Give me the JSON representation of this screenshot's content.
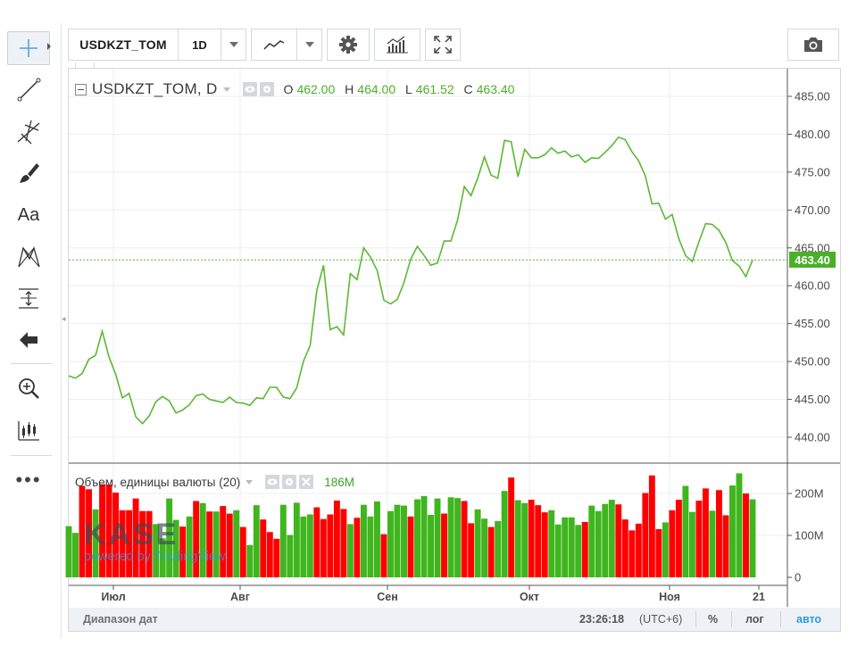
{
  "toolbar": {
    "symbol": "USDKZT_TOM",
    "interval": "1D"
  },
  "legend": {
    "symbol_interval": "USDKZT_TOM, D",
    "o_label": "O",
    "o_value": "462.00",
    "h_label": "H",
    "h_value": "464.00",
    "l_label": "L",
    "l_value": "461.52",
    "c_label": "C",
    "c_value": "463.40"
  },
  "volume_legend": {
    "title": "Объем, единицы валюты (20)",
    "value": "186M"
  },
  "watermark": {
    "logo": "KASE",
    "tagline": "powered by TradingView"
  },
  "price_axis": {
    "ticks": [
      "485.00",
      "480.00",
      "475.00",
      "470.00",
      "465.00",
      "460.00",
      "455.00",
      "450.00",
      "445.00",
      "440.00"
    ],
    "last_price": "463.40"
  },
  "volume_axis": {
    "ticks": [
      "200M",
      "100M",
      "0"
    ]
  },
  "time_axis": {
    "ticks": [
      "Июл",
      "Авг",
      "Сен",
      "Окт",
      "Ноя",
      "21"
    ]
  },
  "statusbar": {
    "date_range": "Диапазон дат",
    "time": "23:26:18",
    "timezone": "(UTC+6)",
    "percent": "%",
    "log": "лог",
    "auto": "авто"
  },
  "colors": {
    "line": "#5cb833",
    "up": "#3fb51e",
    "down": "#ff0000",
    "accent": "#2d9ce0"
  },
  "icons": {
    "tools": [
      "crosshair-icon",
      "trend-line-icon",
      "pitchfork-icon",
      "brush-icon",
      "text-icon",
      "pattern-icon",
      "measure-icon",
      "arrow-left-icon",
      "zoom-icon",
      "ruler-chart-icon",
      "more-icon"
    ],
    "top": [
      "line-style-icon",
      "gear-icon",
      "indicators-icon",
      "fullscreen-icon",
      "camera-icon"
    ]
  },
  "chart_data": {
    "type": "line",
    "title": "USDKZT_TOM, D",
    "xlabel": "",
    "ylabel": "",
    "ylim": [
      437,
      488
    ],
    "x_ticks": [
      "Июл",
      "Авг",
      "Сен",
      "Окт",
      "Ноя",
      "21"
    ],
    "series": [
      {
        "name": "USDKZT_TOM",
        "values": [
          448.1,
          447.8,
          448.4,
          450.3,
          450.8,
          454.0,
          450.6,
          448.3,
          445.2,
          445.8,
          442.7,
          441.8,
          442.8,
          444.7,
          445.4,
          444.8,
          443.2,
          443.6,
          444.3,
          445.5,
          445.7,
          445.0,
          444.8,
          444.6,
          445.3,
          444.6,
          444.5,
          444.2,
          445.2,
          445.1,
          446.6,
          446.6,
          445.3,
          445.1,
          446.5,
          450.0,
          452.1,
          459.4,
          462.7,
          454.2,
          454.6,
          453.5,
          461.6,
          460.8,
          465.0,
          463.8,
          462.0,
          458.1,
          457.6,
          458.2,
          460.4,
          463.5,
          465.2,
          464.0,
          462.7,
          463.0,
          465.9,
          465.9,
          468.7,
          473.1,
          471.9,
          474.2,
          477.0,
          474.6,
          474.2,
          479.2,
          479.0,
          474.4,
          478.0,
          476.9,
          476.9,
          477.3,
          478.2,
          477.5,
          477.8,
          477.0,
          477.3,
          476.3,
          476.9,
          476.8,
          477.6,
          478.5,
          479.6,
          479.3,
          477.7,
          476.5,
          474.5,
          470.8,
          470.9,
          468.8,
          469.4,
          466.2,
          464.0,
          463.2,
          465.8,
          468.2,
          468.1,
          467.3,
          465.7,
          463.3,
          462.6,
          461.2,
          463.4
        ]
      },
      {
        "name": "Объем, единицы валюты (20)",
        "values": [
          122,
          106,
          218,
          210,
          162,
          222,
          221,
          202,
          160,
          160,
          188,
          158,
          158,
          127,
          93,
          188,
          137,
          121,
          145,
          182,
          177,
          157,
          157,
          170,
          152,
          160,
          120,
          77,
          172,
          138,
          108,
          92,
          173,
          101,
          178,
          145,
          150,
          167,
          139,
          150,
          183,
          163,
          127,
          142,
          173,
          145,
          181,
          103,
          158,
          173,
          171,
          145,
          186,
          194,
          149,
          188,
          152,
          191,
          189,
          182,
          129,
          162,
          140,
          120,
          134,
          206,
          238,
          184,
          177,
          185,
          172,
          155,
          160,
          126,
          143,
          143,
          125,
          132,
          171,
          158,
          175,
          185,
          174,
          138,
          112,
          128,
          201,
          243,
          115,
          131,
          160,
          185,
          218,
          156,
          183,
          212,
          159,
          208,
          148,
          219,
          248,
          200,
          186
        ],
        "up": [
          1,
          1,
          0,
          0,
          1,
          0,
          0,
          0,
          0,
          0,
          0,
          0,
          0,
          1,
          1,
          1,
          1,
          0,
          1,
          0,
          1,
          0,
          1,
          0,
          0,
          1,
          0,
          1,
          1,
          0,
          0,
          0,
          1,
          1,
          1,
          1,
          1,
          0,
          0,
          0,
          0,
          0,
          1,
          0,
          1,
          1,
          1,
          0,
          1,
          1,
          1,
          0,
          1,
          1,
          1,
          1,
          0,
          1,
          1,
          0,
          0,
          1,
          1,
          0,
          1,
          1,
          0,
          1,
          1,
          0,
          0,
          0,
          1,
          1,
          1,
          1,
          1,
          0,
          1,
          1,
          1,
          1,
          0,
          0,
          0,
          0,
          0,
          0,
          0,
          1,
          0,
          0,
          1,
          1,
          0,
          0,
          1,
          0,
          0,
          1,
          1,
          0,
          1
        ]
      }
    ]
  }
}
